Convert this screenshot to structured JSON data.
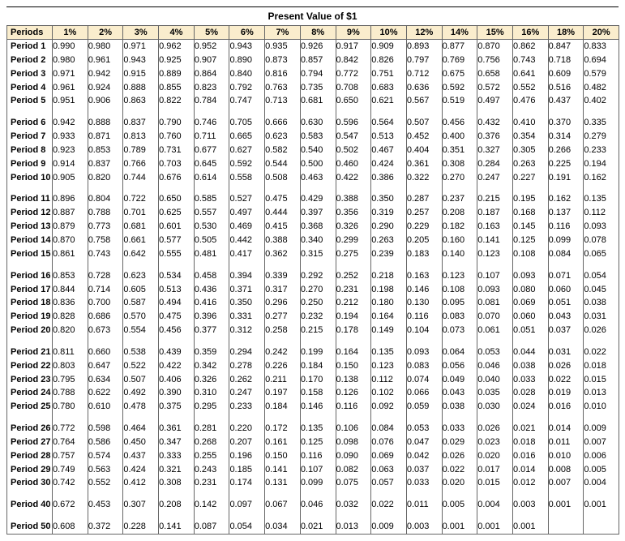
{
  "title": "Present Value of $1",
  "style": {
    "header_bg": "#faedcd",
    "border_color": "#666666",
    "font_family": "Verdana, Geneva, sans-serif",
    "title_fontsize": 12,
    "cell_fontsize": 11,
    "value_decimals": 3
  },
  "columns": [
    "Periods",
    "1%",
    "2%",
    "3%",
    "4%",
    "5%",
    "6%",
    "7%",
    "8%",
    "9%",
    "10%",
    "12%",
    "14%",
    "15%",
    "16%",
    "18%",
    "20%"
  ],
  "groups": [
    {
      "rows": [
        {
          "period": "Period 1",
          "v": [
            "0.990",
            "0.980",
            "0.971",
            "0.962",
            "0.952",
            "0.943",
            "0.935",
            "0.926",
            "0.917",
            "0.909",
            "0.893",
            "0.877",
            "0.870",
            "0.862",
            "0.847",
            "0.833"
          ]
        },
        {
          "period": "Period 2",
          "v": [
            "0.980",
            "0.961",
            "0.943",
            "0.925",
            "0.907",
            "0.890",
            "0.873",
            "0.857",
            "0.842",
            "0.826",
            "0.797",
            "0.769",
            "0.756",
            "0.743",
            "0.718",
            "0.694"
          ]
        },
        {
          "period": "Period 3",
          "v": [
            "0.971",
            "0.942",
            "0.915",
            "0.889",
            "0.864",
            "0.840",
            "0.816",
            "0.794",
            "0.772",
            "0.751",
            "0.712",
            "0.675",
            "0.658",
            "0.641",
            "0.609",
            "0.579"
          ]
        },
        {
          "period": "Period 4",
          "v": [
            "0.961",
            "0.924",
            "0.888",
            "0.855",
            "0.823",
            "0.792",
            "0.763",
            "0.735",
            "0.708",
            "0.683",
            "0.636",
            "0.592",
            "0.572",
            "0.552",
            "0.516",
            "0.482"
          ]
        },
        {
          "period": "Period 5",
          "v": [
            "0.951",
            "0.906",
            "0.863",
            "0.822",
            "0.784",
            "0.747",
            "0.713",
            "0.681",
            "0.650",
            "0.621",
            "0.567",
            "0.519",
            "0.497",
            "0.476",
            "0.437",
            "0.402"
          ]
        }
      ]
    },
    {
      "rows": [
        {
          "period": "Period 6",
          "v": [
            "0.942",
            "0.888",
            "0.837",
            "0.790",
            "0.746",
            "0.705",
            "0.666",
            "0.630",
            "0.596",
            "0.564",
            "0.507",
            "0.456",
            "0.432",
            "0.410",
            "0.370",
            "0.335"
          ]
        },
        {
          "period": "Period 7",
          "v": [
            "0.933",
            "0.871",
            "0.813",
            "0.760",
            "0.711",
            "0.665",
            "0.623",
            "0.583",
            "0.547",
            "0.513",
            "0.452",
            "0.400",
            "0.376",
            "0.354",
            "0.314",
            "0.279"
          ]
        },
        {
          "period": "Period 8",
          "v": [
            "0.923",
            "0.853",
            "0.789",
            "0.731",
            "0.677",
            "0.627",
            "0.582",
            "0.540",
            "0.502",
            "0.467",
            "0.404",
            "0.351",
            "0.327",
            "0.305",
            "0.266",
            "0.233"
          ]
        },
        {
          "period": "Period 9",
          "v": [
            "0.914",
            "0.837",
            "0.766",
            "0.703",
            "0.645",
            "0.592",
            "0.544",
            "0.500",
            "0.460",
            "0.424",
            "0.361",
            "0.308",
            "0.284",
            "0.263",
            "0.225",
            "0.194"
          ]
        },
        {
          "period": "Period 10",
          "v": [
            "0.905",
            "0.820",
            "0.744",
            "0.676",
            "0.614",
            "0.558",
            "0.508",
            "0.463",
            "0.422",
            "0.386",
            "0.322",
            "0.270",
            "0.247",
            "0.227",
            "0.191",
            "0.162"
          ]
        }
      ]
    },
    {
      "rows": [
        {
          "period": "Period 11",
          "v": [
            "0.896",
            "0.804",
            "0.722",
            "0.650",
            "0.585",
            "0.527",
            "0.475",
            "0.429",
            "0.388",
            "0.350",
            "0.287",
            "0.237",
            "0.215",
            "0.195",
            "0.162",
            "0.135"
          ]
        },
        {
          "period": "Period 12",
          "v": [
            "0.887",
            "0.788",
            "0.701",
            "0.625",
            "0.557",
            "0.497",
            "0.444",
            "0.397",
            "0.356",
            "0.319",
            "0.257",
            "0.208",
            "0.187",
            "0.168",
            "0.137",
            "0.112"
          ]
        },
        {
          "period": "Period 13",
          "v": [
            "0.879",
            "0.773",
            "0.681",
            "0.601",
            "0.530",
            "0.469",
            "0.415",
            "0.368",
            "0.326",
            "0.290",
            "0.229",
            "0.182",
            "0.163",
            "0.145",
            "0.116",
            "0.093"
          ]
        },
        {
          "period": "Period 14",
          "v": [
            "0.870",
            "0.758",
            "0.661",
            "0.577",
            "0.505",
            "0.442",
            "0.388",
            "0.340",
            "0.299",
            "0.263",
            "0.205",
            "0.160",
            "0.141",
            "0.125",
            "0.099",
            "0.078"
          ]
        },
        {
          "period": "Period 15",
          "v": [
            "0.861",
            "0.743",
            "0.642",
            "0.555",
            "0.481",
            "0.417",
            "0.362",
            "0.315",
            "0.275",
            "0.239",
            "0.183",
            "0.140",
            "0.123",
            "0.108",
            "0.084",
            "0.065"
          ]
        }
      ]
    },
    {
      "rows": [
        {
          "period": "Period 16",
          "v": [
            "0.853",
            "0.728",
            "0.623",
            "0.534",
            "0.458",
            "0.394",
            "0.339",
            "0.292",
            "0.252",
            "0.218",
            "0.163",
            "0.123",
            "0.107",
            "0.093",
            "0.071",
            "0.054"
          ]
        },
        {
          "period": "Period 17",
          "v": [
            "0.844",
            "0.714",
            "0.605",
            "0.513",
            "0.436",
            "0.371",
            "0.317",
            "0.270",
            "0.231",
            "0.198",
            "0.146",
            "0.108",
            "0.093",
            "0.080",
            "0.060",
            "0.045"
          ]
        },
        {
          "period": "Period 18",
          "v": [
            "0.836",
            "0.700",
            "0.587",
            "0.494",
            "0.416",
            "0.350",
            "0.296",
            "0.250",
            "0.212",
            "0.180",
            "0.130",
            "0.095",
            "0.081",
            "0.069",
            "0.051",
            "0.038"
          ]
        },
        {
          "period": "Period 19",
          "v": [
            "0.828",
            "0.686",
            "0.570",
            "0.475",
            "0.396",
            "0.331",
            "0.277",
            "0.232",
            "0.194",
            "0.164",
            "0.116",
            "0.083",
            "0.070",
            "0.060",
            "0.043",
            "0.031"
          ]
        },
        {
          "period": "Period 20",
          "v": [
            "0.820",
            "0.673",
            "0.554",
            "0.456",
            "0.377",
            "0.312",
            "0.258",
            "0.215",
            "0.178",
            "0.149",
            "0.104",
            "0.073",
            "0.061",
            "0.051",
            "0.037",
            "0.026"
          ]
        }
      ]
    },
    {
      "rows": [
        {
          "period": "Period 21",
          "v": [
            "0.811",
            "0.660",
            "0.538",
            "0.439",
            "0.359",
            "0.294",
            "0.242",
            "0.199",
            "0.164",
            "0.135",
            "0.093",
            "0.064",
            "0.053",
            "0.044",
            "0.031",
            "0.022"
          ]
        },
        {
          "period": "Period 22",
          "v": [
            "0.803",
            "0.647",
            "0.522",
            "0.422",
            "0.342",
            "0.278",
            "0.226",
            "0.184",
            "0.150",
            "0.123",
            "0.083",
            "0.056",
            "0.046",
            "0.038",
            "0.026",
            "0.018"
          ]
        },
        {
          "period": "Period 23",
          "v": [
            "0.795",
            "0.634",
            "0.507",
            "0.406",
            "0.326",
            "0.262",
            "0.211",
            "0.170",
            "0.138",
            "0.112",
            "0.074",
            "0.049",
            "0.040",
            "0.033",
            "0.022",
            "0.015"
          ]
        },
        {
          "period": "Period 24",
          "v": [
            "0.788",
            "0.622",
            "0.492",
            "0.390",
            "0.310",
            "0.247",
            "0.197",
            "0.158",
            "0.126",
            "0.102",
            "0.066",
            "0.043",
            "0.035",
            "0.028",
            "0.019",
            "0.013"
          ]
        },
        {
          "period": "Period 25",
          "v": [
            "0.780",
            "0.610",
            "0.478",
            "0.375",
            "0.295",
            "0.233",
            "0.184",
            "0.146",
            "0.116",
            "0.092",
            "0.059",
            "0.038",
            "0.030",
            "0.024",
            "0.016",
            "0.010"
          ]
        }
      ]
    },
    {
      "rows": [
        {
          "period": "Period 26",
          "v": [
            "0.772",
            "0.598",
            "0.464",
            "0.361",
            "0.281",
            "0.220",
            "0.172",
            "0.135",
            "0.106",
            "0.084",
            "0.053",
            "0.033",
            "0.026",
            "0.021",
            "0.014",
            "0.009"
          ]
        },
        {
          "period": "Period 27",
          "v": [
            "0.764",
            "0.586",
            "0.450",
            "0.347",
            "0.268",
            "0.207",
            "0.161",
            "0.125",
            "0.098",
            "0.076",
            "0.047",
            "0.029",
            "0.023",
            "0.018",
            "0.011",
            "0.007"
          ]
        },
        {
          "period": "Period 28",
          "v": [
            "0.757",
            "0.574",
            "0.437",
            "0.333",
            "0.255",
            "0.196",
            "0.150",
            "0.116",
            "0.090",
            "0.069",
            "0.042",
            "0.026",
            "0.020",
            "0.016",
            "0.010",
            "0.006"
          ]
        },
        {
          "period": "Period 29",
          "v": [
            "0.749",
            "0.563",
            "0.424",
            "0.321",
            "0.243",
            "0.185",
            "0.141",
            "0.107",
            "0.082",
            "0.063",
            "0.037",
            "0.022",
            "0.017",
            "0.014",
            "0.008",
            "0.005"
          ]
        },
        {
          "period": "Period 30",
          "v": [
            "0.742",
            "0.552",
            "0.412",
            "0.308",
            "0.231",
            "0.174",
            "0.131",
            "0.099",
            "0.075",
            "0.057",
            "0.033",
            "0.020",
            "0.015",
            "0.012",
            "0.007",
            "0.004"
          ]
        }
      ]
    },
    {
      "rows": [
        {
          "period": "Period 40",
          "v": [
            "0.672",
            "0.453",
            "0.307",
            "0.208",
            "0.142",
            "0.097",
            "0.067",
            "0.046",
            "0.032",
            "0.022",
            "0.011",
            "0.005",
            "0.004",
            "0.003",
            "0.001",
            "0.001"
          ]
        }
      ]
    },
    {
      "rows": [
        {
          "period": "Period 50",
          "v": [
            "0.608",
            "0.372",
            "0.228",
            "0.141",
            "0.087",
            "0.054",
            "0.034",
            "0.021",
            "0.013",
            "0.009",
            "0.003",
            "0.001",
            "0.001",
            "0.001",
            "",
            ""
          ]
        }
      ]
    }
  ]
}
